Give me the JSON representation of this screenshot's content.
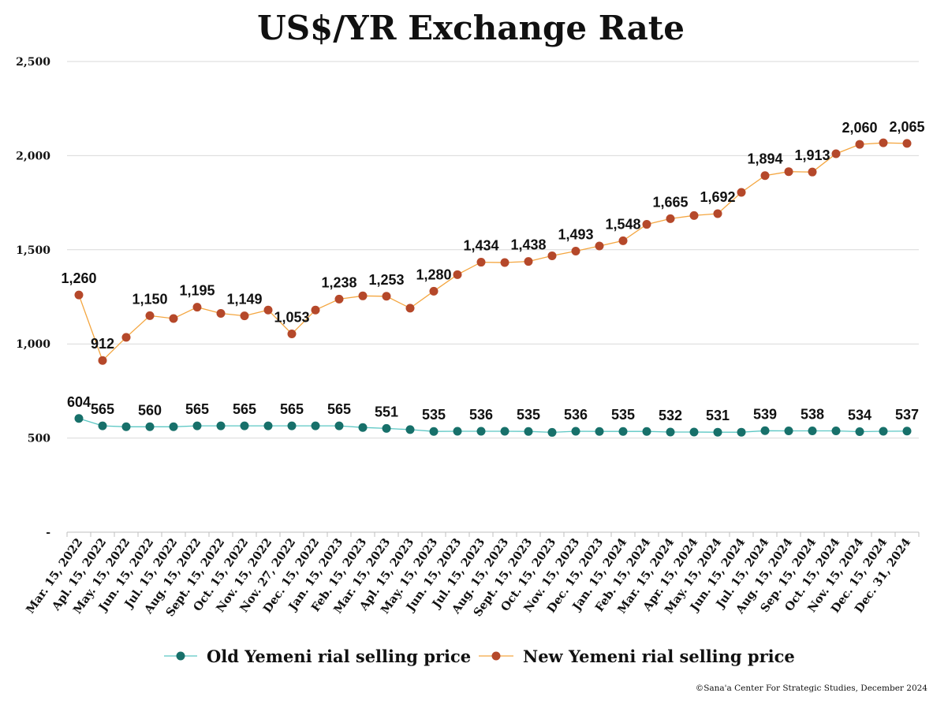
{
  "chart_data": {
    "type": "line",
    "title": "US$/YR Exchange Rate",
    "source": "©Sana'a Center For Strategic Studies, December 2024",
    "ylim": [
      0,
      2500
    ],
    "yticks": [
      {
        "value": 0,
        "label": "-"
      },
      {
        "value": 500,
        "label": "500"
      },
      {
        "value": 1000,
        "label": "1,000"
      },
      {
        "value": 1500,
        "label": "1,500"
      },
      {
        "value": 2000,
        "label": "2,000"
      },
      {
        "value": 2500,
        "label": "2,500"
      }
    ],
    "grid": true,
    "legend_position": "bottom",
    "categories": [
      "Mar. 15, 2022",
      "Apl. 15, 2022",
      "May. 15, 2022",
      "Jun. 15, 2022",
      "Jul. 15, 2022",
      "Aug. 15, 2022",
      "Sept. 15, 2022",
      "Oct. 15, 2022",
      "Nov. 15, 2022",
      "Nov. 27, 2022",
      "Dec. 15, 2022",
      "Jan. 15, 2023",
      "Feb. 15, 2023",
      "Mar. 15, 2023",
      "Apl. 15, 2023",
      "May. 15, 2023",
      "Jun. 15, 2023",
      "Jul. 15, 2023",
      "Aug. 15, 2023",
      "Sept. 15, 2023",
      "Oct. 15, 2023",
      "Nov. 15, 2023",
      "Dec. 15, 2023",
      "Jan. 15, 2024",
      "Feb. 15, 2024",
      "Mar. 15, 2024",
      "Apr. 15, 2024",
      "May. 15, 2024",
      "Jun. 15, 2024",
      "Jul. 15, 2024",
      "Aug. 15, 2024",
      "Sep. 15, 2024",
      "Oct. 15, 2024",
      "Nov. 15, 2024",
      "Dec. 15, 2024",
      "Dec. 31, 2024"
    ],
    "series": [
      {
        "name": "Old Yemeni rial selling price",
        "color": "#17706a",
        "line_color": "#5cc7c4",
        "label_position": "above",
        "values": [
          604,
          565,
          560,
          560,
          560,
          565,
          565,
          565,
          565,
          565,
          565,
          565,
          556,
          551,
          545,
          535,
          536,
          536,
          536,
          535,
          530,
          536,
          535,
          535,
          535,
          532,
          532,
          531,
          531,
          539,
          538,
          538,
          538,
          534,
          536,
          537
        ],
        "labels": [
          "604",
          "565",
          "",
          "560",
          "",
          "565",
          "",
          "565",
          "",
          "565",
          "",
          "565",
          "",
          "551",
          "",
          "535",
          "",
          "536",
          "",
          "535",
          "",
          "536",
          "",
          "535",
          "",
          "532",
          "",
          "531",
          "",
          "539",
          "",
          "538",
          "",
          "534",
          "",
          "537"
        ]
      },
      {
        "name": "New Yemeni rial selling price",
        "color": "#b5482a",
        "line_color": "#f4a640",
        "label_position": "above",
        "values": [
          1260,
          912,
          1035,
          1150,
          1135,
          1195,
          1162,
          1149,
          1180,
          1053,
          1180,
          1238,
          1255,
          1253,
          1190,
          1280,
          1368,
          1434,
          1432,
          1438,
          1468,
          1493,
          1520,
          1548,
          1635,
          1665,
          1682,
          1692,
          1805,
          1894,
          1915,
          1913,
          2010,
          2060,
          2068,
          2065
        ],
        "labels": [
          "1,260",
          "912",
          "",
          "1,150",
          "",
          "1,195",
          "",
          "1,149",
          "",
          "1,053",
          "",
          "1,238",
          "",
          "1,253",
          "",
          "1,280",
          "",
          "1,434",
          "",
          "1,438",
          "",
          "1,493",
          "",
          "1,548",
          "",
          "1,665",
          "",
          "1,692",
          "",
          "1,894",
          "",
          "1,913",
          "",
          "2,060",
          "",
          "2,065"
        ]
      }
    ]
  }
}
